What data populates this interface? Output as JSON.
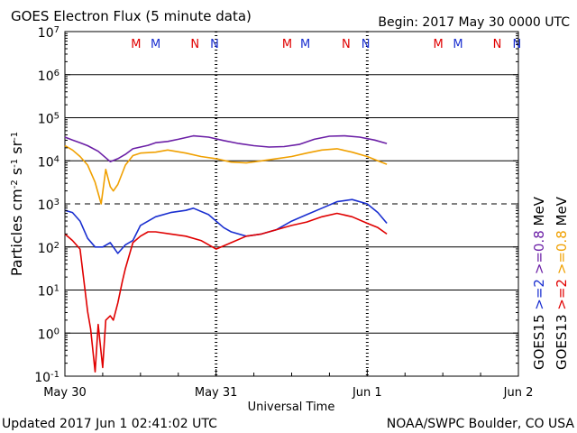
{
  "chart_data": {
    "type": "line",
    "title": "GOES Electron Flux (5 minute data)",
    "begin_label": "Begin: 2017 May 30 0000 UTC",
    "xlabel": "Universal Time",
    "ylabel_parts": {
      "base": "Particles cm",
      "exp1": "-2",
      "s": "s",
      "exp2": "-1",
      "sr": "sr",
      "exp3": "-1"
    },
    "x_unit": "days since 2017-05-30 00:00 UTC",
    "xlim": [
      0,
      3
    ],
    "ylim_log10": [
      -1,
      7
    ],
    "y_scale": "log",
    "y_ticks": [
      {
        "exp": 7,
        "label_base": "10",
        "label_exp": "7"
      },
      {
        "exp": 6,
        "label_base": "10",
        "label_exp": "6"
      },
      {
        "exp": 5,
        "label_base": "10",
        "label_exp": "5"
      },
      {
        "exp": 4,
        "label_base": "10",
        "label_exp": "4"
      },
      {
        "exp": 3,
        "label_base": "10",
        "label_exp": "3"
      },
      {
        "exp": 2,
        "label_base": "10",
        "label_exp": "2"
      },
      {
        "exp": 1,
        "label_base": "10",
        "label_exp": "1"
      },
      {
        "exp": 0,
        "label_base": "10",
        "label_exp": "0"
      },
      {
        "exp": -1,
        "label_base": "10",
        "label_exp": "-1"
      }
    ],
    "x_ticks": [
      {
        "x": 0,
        "label": "May 30"
      },
      {
        "x": 1,
        "label": "May 31"
      },
      {
        "x": 2,
        "label": "Jun 1"
      },
      {
        "x": 3,
        "label": "Jun 2"
      }
    ],
    "horizontal_gridlines_solid": [
      6,
      5,
      4,
      2,
      1,
      0
    ],
    "horizontal_gridlines_dashed": [
      3
    ],
    "mn_markers": [
      {
        "x": 0.47,
        "label": "M",
        "color": "#e00000"
      },
      {
        "x": 0.6,
        "label": "M",
        "color": "#1a2fd0"
      },
      {
        "x": 0.86,
        "label": "N",
        "color": "#e00000"
      },
      {
        "x": 0.99,
        "label": "N",
        "color": "#1a2fd0"
      },
      {
        "x": 1.47,
        "label": "M",
        "color": "#e00000"
      },
      {
        "x": 1.59,
        "label": "M",
        "color": "#1a2fd0"
      },
      {
        "x": 1.86,
        "label": "N",
        "color": "#e00000"
      },
      {
        "x": 1.99,
        "label": "N",
        "color": "#1a2fd0"
      },
      {
        "x": 2.47,
        "label": "M",
        "color": "#e00000"
      },
      {
        "x": 2.6,
        "label": "M",
        "color": "#1a2fd0"
      },
      {
        "x": 2.86,
        "label": "N",
        "color": "#e00000"
      },
      {
        "x": 2.99,
        "label": "N",
        "color": "#1a2fd0"
      }
    ],
    "series": [
      {
        "name": "GOES15 >=0.8 MeV",
        "color": "#6b1fa6",
        "x": [
          0,
          0.05,
          0.1,
          0.15,
          0.22,
          0.3,
          0.35,
          0.4,
          0.45,
          0.5,
          0.55,
          0.6,
          0.68,
          0.75,
          0.85,
          0.95,
          1.05,
          1.15,
          1.25,
          1.35,
          1.45,
          1.55,
          1.65,
          1.75,
          1.85,
          1.95,
          2.05,
          2.13
        ],
        "y_log10": [
          4.55,
          4.48,
          4.42,
          4.35,
          4.22,
          3.98,
          4.05,
          4.15,
          4.28,
          4.32,
          4.36,
          4.42,
          4.45,
          4.5,
          4.58,
          4.55,
          4.47,
          4.4,
          4.35,
          4.32,
          4.33,
          4.38,
          4.5,
          4.57,
          4.58,
          4.55,
          4.48,
          4.4
        ]
      },
      {
        "name": "GOES13 >=0.8 MeV",
        "color": "#f0a000",
        "x": [
          0,
          0.05,
          0.1,
          0.15,
          0.2,
          0.24,
          0.27,
          0.3,
          0.32,
          0.35,
          0.4,
          0.45,
          0.5,
          0.6,
          0.68,
          0.8,
          0.9,
          1.0,
          1.1,
          1.2,
          1.3,
          1.4,
          1.5,
          1.6,
          1.7,
          1.8,
          1.9,
          2.0,
          2.07,
          2.13
        ],
        "y_log10": [
          4.35,
          4.25,
          4.1,
          3.9,
          3.5,
          3.0,
          3.8,
          3.4,
          3.3,
          3.45,
          3.9,
          4.12,
          4.18,
          4.2,
          4.25,
          4.18,
          4.1,
          4.05,
          3.97,
          3.95,
          4.0,
          4.05,
          4.1,
          4.18,
          4.25,
          4.28,
          4.2,
          4.1,
          4.0,
          3.92
        ]
      },
      {
        "name": "GOES15 >=2 MeV",
        "color": "#1a2fd0",
        "x": [
          0,
          0.05,
          0.1,
          0.15,
          0.2,
          0.25,
          0.3,
          0.35,
          0.4,
          0.45,
          0.5,
          0.6,
          0.7,
          0.8,
          0.85,
          0.95,
          1.0,
          1.05,
          1.1,
          1.2,
          1.3,
          1.4,
          1.5,
          1.6,
          1.7,
          1.8,
          1.9,
          2.0,
          2.07,
          2.13
        ],
        "y_log10": [
          2.85,
          2.8,
          2.6,
          2.2,
          2.0,
          2.0,
          2.1,
          1.85,
          2.05,
          2.15,
          2.5,
          2.7,
          2.8,
          2.85,
          2.9,
          2.75,
          2.6,
          2.45,
          2.35,
          2.25,
          2.3,
          2.4,
          2.6,
          2.75,
          2.9,
          3.05,
          3.1,
          3.0,
          2.8,
          2.55
        ]
      },
      {
        "name": "GOES13 >=2 MeV",
        "color": "#e00000",
        "x": [
          0,
          0.05,
          0.1,
          0.15,
          0.17,
          0.2,
          0.22,
          0.25,
          0.27,
          0.3,
          0.32,
          0.35,
          0.38,
          0.4,
          0.45,
          0.5,
          0.55,
          0.6,
          0.7,
          0.8,
          0.9,
          1.0,
          1.1,
          1.2,
          1.3,
          1.4,
          1.5,
          1.6,
          1.7,
          1.8,
          1.9,
          2.0,
          2.07,
          2.13
        ],
        "y_log10": [
          2.3,
          2.15,
          1.95,
          0.5,
          0.1,
          -0.9,
          0.2,
          -0.8,
          0.3,
          0.4,
          0.3,
          0.7,
          1.2,
          1.5,
          2.1,
          2.25,
          2.35,
          2.35,
          2.3,
          2.25,
          2.15,
          1.95,
          2.1,
          2.25,
          2.3,
          2.4,
          2.5,
          2.58,
          2.7,
          2.78,
          2.7,
          2.55,
          2.45,
          2.3
        ]
      }
    ],
    "legend": [
      {
        "prefix": "GOES15",
        "items": [
          {
            "text": ">=2",
            "color": "#1a2fd0"
          },
          {
            "text": ">=0.8",
            "color": "#6b1fa6"
          }
        ],
        "unit": "MeV"
      },
      {
        "prefix": "GOES13",
        "items": [
          {
            "text": ">=2",
            "color": "#e00000"
          },
          {
            "text": ">=0.8",
            "color": "#f0a000"
          }
        ],
        "unit": "MeV"
      }
    ]
  },
  "footer": {
    "updated": "Updated 2017 Jun  1 02:41:02 UTC",
    "credit": "NOAA/SWPC Boulder, CO USA"
  }
}
